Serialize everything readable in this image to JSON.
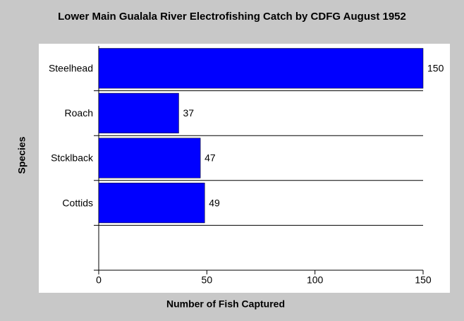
{
  "chart_data": {
    "type": "barh",
    "title": "Lower Main Gualala River Electrofishing Catch by CDFG August 1952",
    "x_label": "Number of Fish Captured",
    "y_label": "Species",
    "categories": [
      "Steelhead",
      "Roach",
      "Stcklback",
      "Cottids",
      null
    ],
    "values": [
      150,
      37,
      47,
      49,
      null
    ],
    "color": "#0000ff",
    "xlim": [
      0,
      150
    ],
    "xticks": [
      0,
      50,
      100,
      150
    ]
  }
}
